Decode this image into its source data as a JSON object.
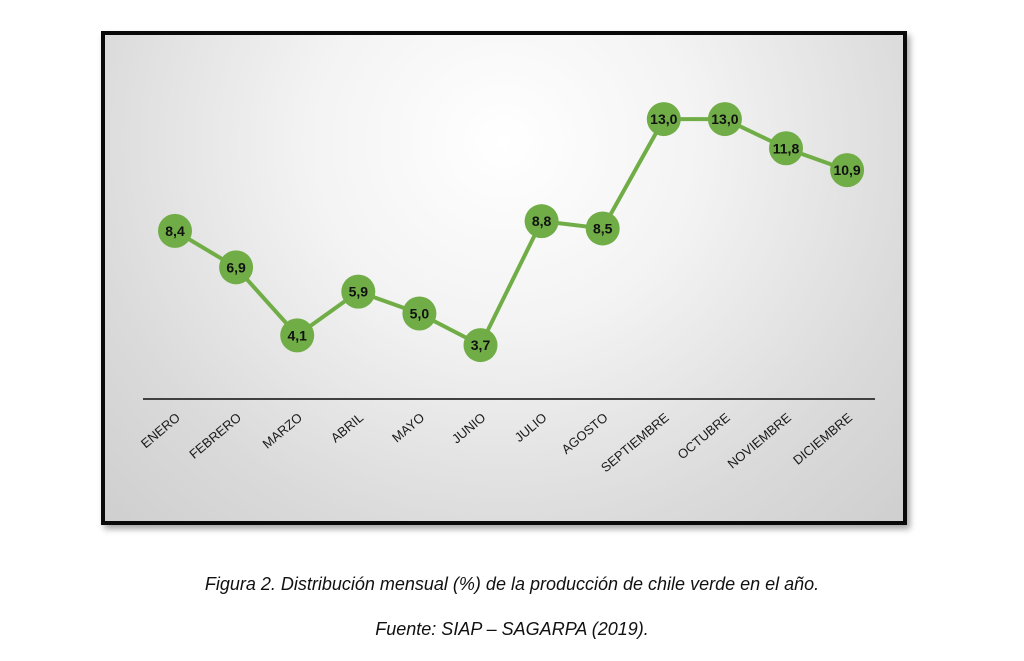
{
  "chart_data": {
    "type": "line",
    "categories": [
      "ENERO",
      "FEBRERO",
      "MARZO",
      "ABRIL",
      "MAYO",
      "JUNIO",
      "JULIO",
      "AGOSTO",
      "SEPTIEMBRE",
      "OCTUBRE",
      "NOVIEMBRE",
      "DICIEMBRE"
    ],
    "values": [
      8.4,
      6.9,
      4.1,
      5.9,
      5.0,
      3.7,
      8.8,
      8.5,
      13.0,
      13.0,
      11.8,
      10.9
    ],
    "data_labels": [
      "8,4",
      "6,9",
      "4,1",
      "5,9",
      "5,0",
      "3,7",
      "8,8",
      "8,5",
      "13,0",
      "13,0",
      "11,8",
      "10,9"
    ],
    "title": "",
    "xlabel": "",
    "ylabel": "",
    "ylim": [
      0,
      14
    ],
    "grid": false,
    "legend": "none",
    "colors": {
      "line": "#70ad47",
      "marker_fill": "#70ad47",
      "axis": "#404040"
    }
  },
  "caption": {
    "figure": "Figura 2. Distribución mensual (%) de la producción de chile verde en el año.",
    "source": "Fuente: SIAP – SAGARPA (2019)."
  }
}
